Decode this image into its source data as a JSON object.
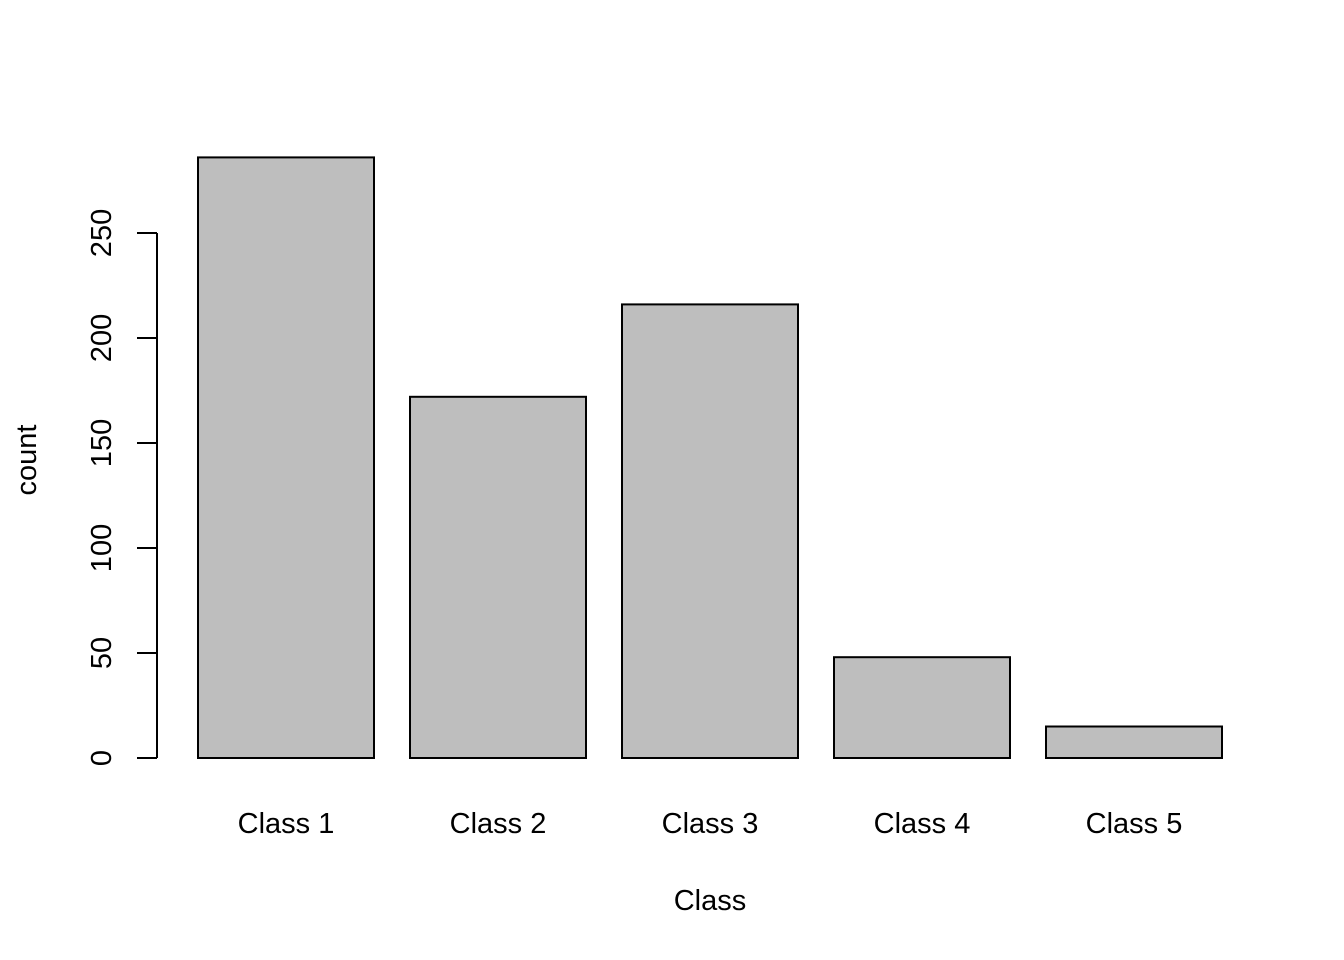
{
  "chart_data": {
    "type": "bar",
    "title": "",
    "xlabel": "Class",
    "ylabel": "count",
    "categories": [
      "Class 1",
      "Class 2",
      "Class 3",
      "Class 4",
      "Class 5"
    ],
    "values": [
      286,
      172,
      216,
      48,
      15
    ],
    "ylim": [
      0,
      286
    ],
    "yticks": [
      0,
      50,
      100,
      150,
      200,
      250
    ],
    "grid": false,
    "legend": "none",
    "colors": {
      "bar_fill": "#bebebe",
      "bar_stroke": "#000000",
      "axis": "#000000",
      "background": "#ffffff"
    }
  }
}
